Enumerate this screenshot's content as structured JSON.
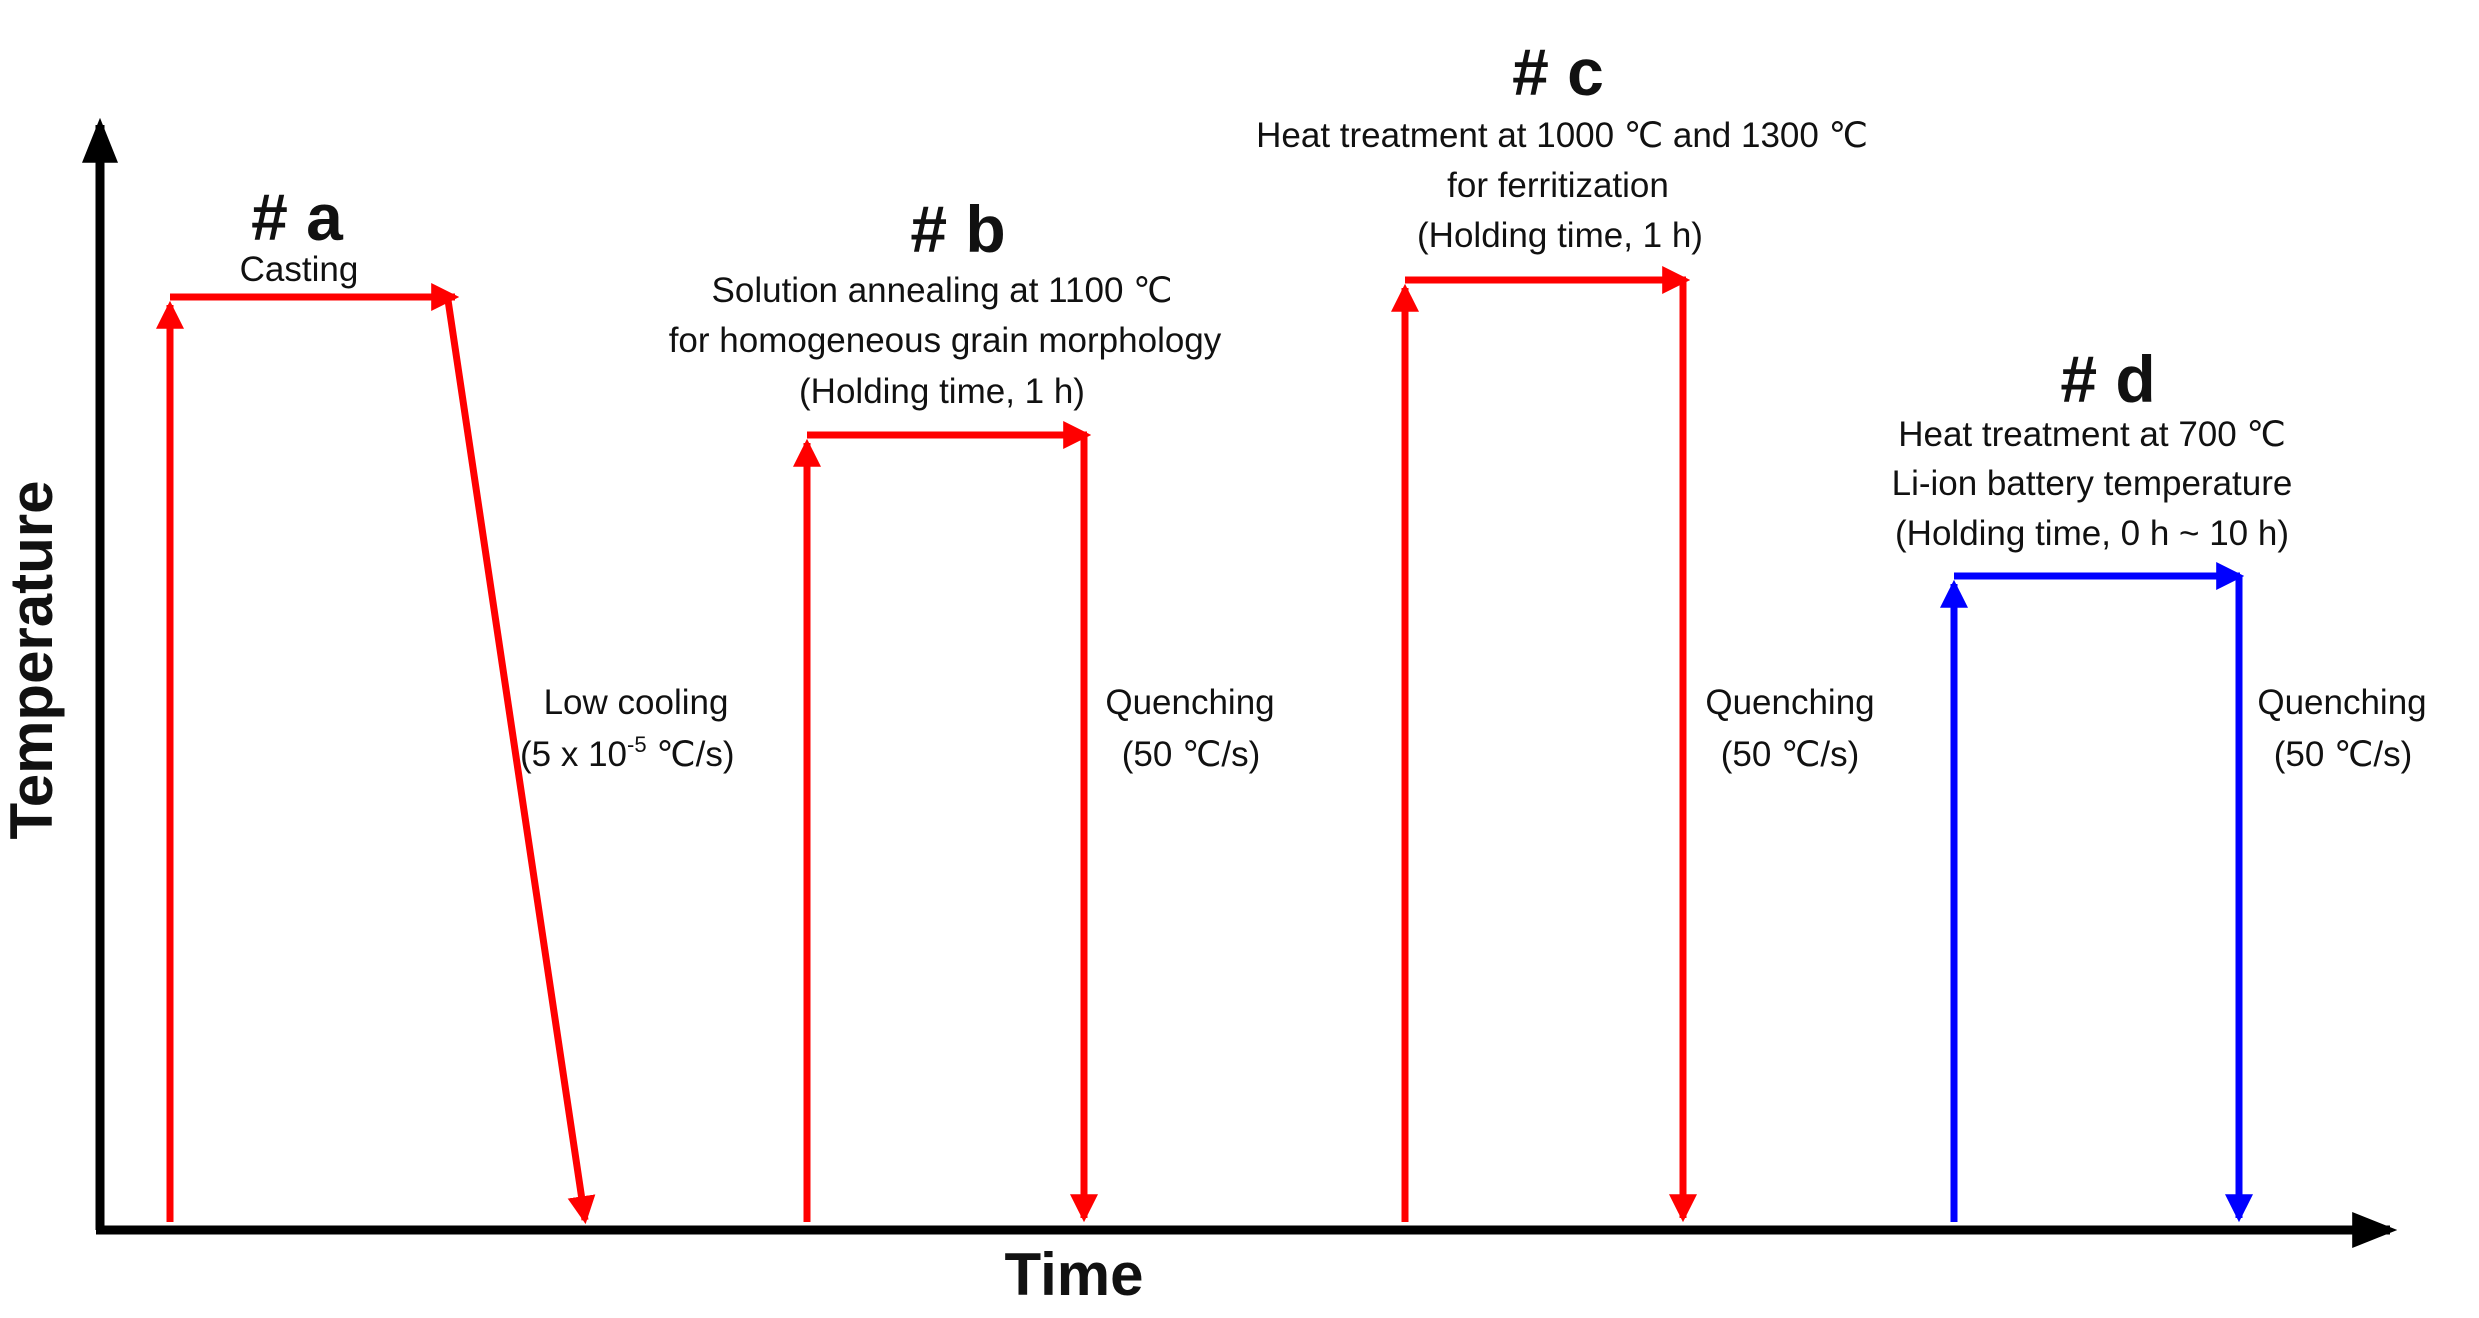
{
  "axes": {
    "y_label": "Temperature",
    "x_label": "Time"
  },
  "colors": {
    "axis": "#000000",
    "process": "#ff0000",
    "battery": "#0000ff"
  },
  "processes": [
    {
      "id": "a",
      "heading": "# a",
      "lines": [
        "Casting"
      ],
      "cooling_lines": [
        "Low cooling",
        "(5 x 10",
        "-5",
        " ℃/s)"
      ]
    },
    {
      "id": "b",
      "heading": "# b",
      "lines": [
        "Solution annealing at 1100 ℃",
        "for homogeneous grain morphology",
        "(Holding time, 1 h)"
      ],
      "cooling_lines": [
        "Quenching",
        "(50 ℃/s)"
      ]
    },
    {
      "id": "c",
      "heading": "# c",
      "lines": [
        "Heat treatment at 1000 ℃ and 1300 ℃",
        "for ferritization",
        "(Holding time, 1 h)"
      ],
      "cooling_lines": [
        "Quenching",
        "(50 ℃/s)"
      ]
    },
    {
      "id": "d",
      "heading": "# d",
      "lines": [
        "Heat treatment at 700 ℃",
        "Li-ion battery temperature",
        "(Holding time, 0 h ~  10 h)"
      ],
      "cooling_lines": [
        "Quenching",
        "(50 ℃/s)"
      ]
    }
  ]
}
